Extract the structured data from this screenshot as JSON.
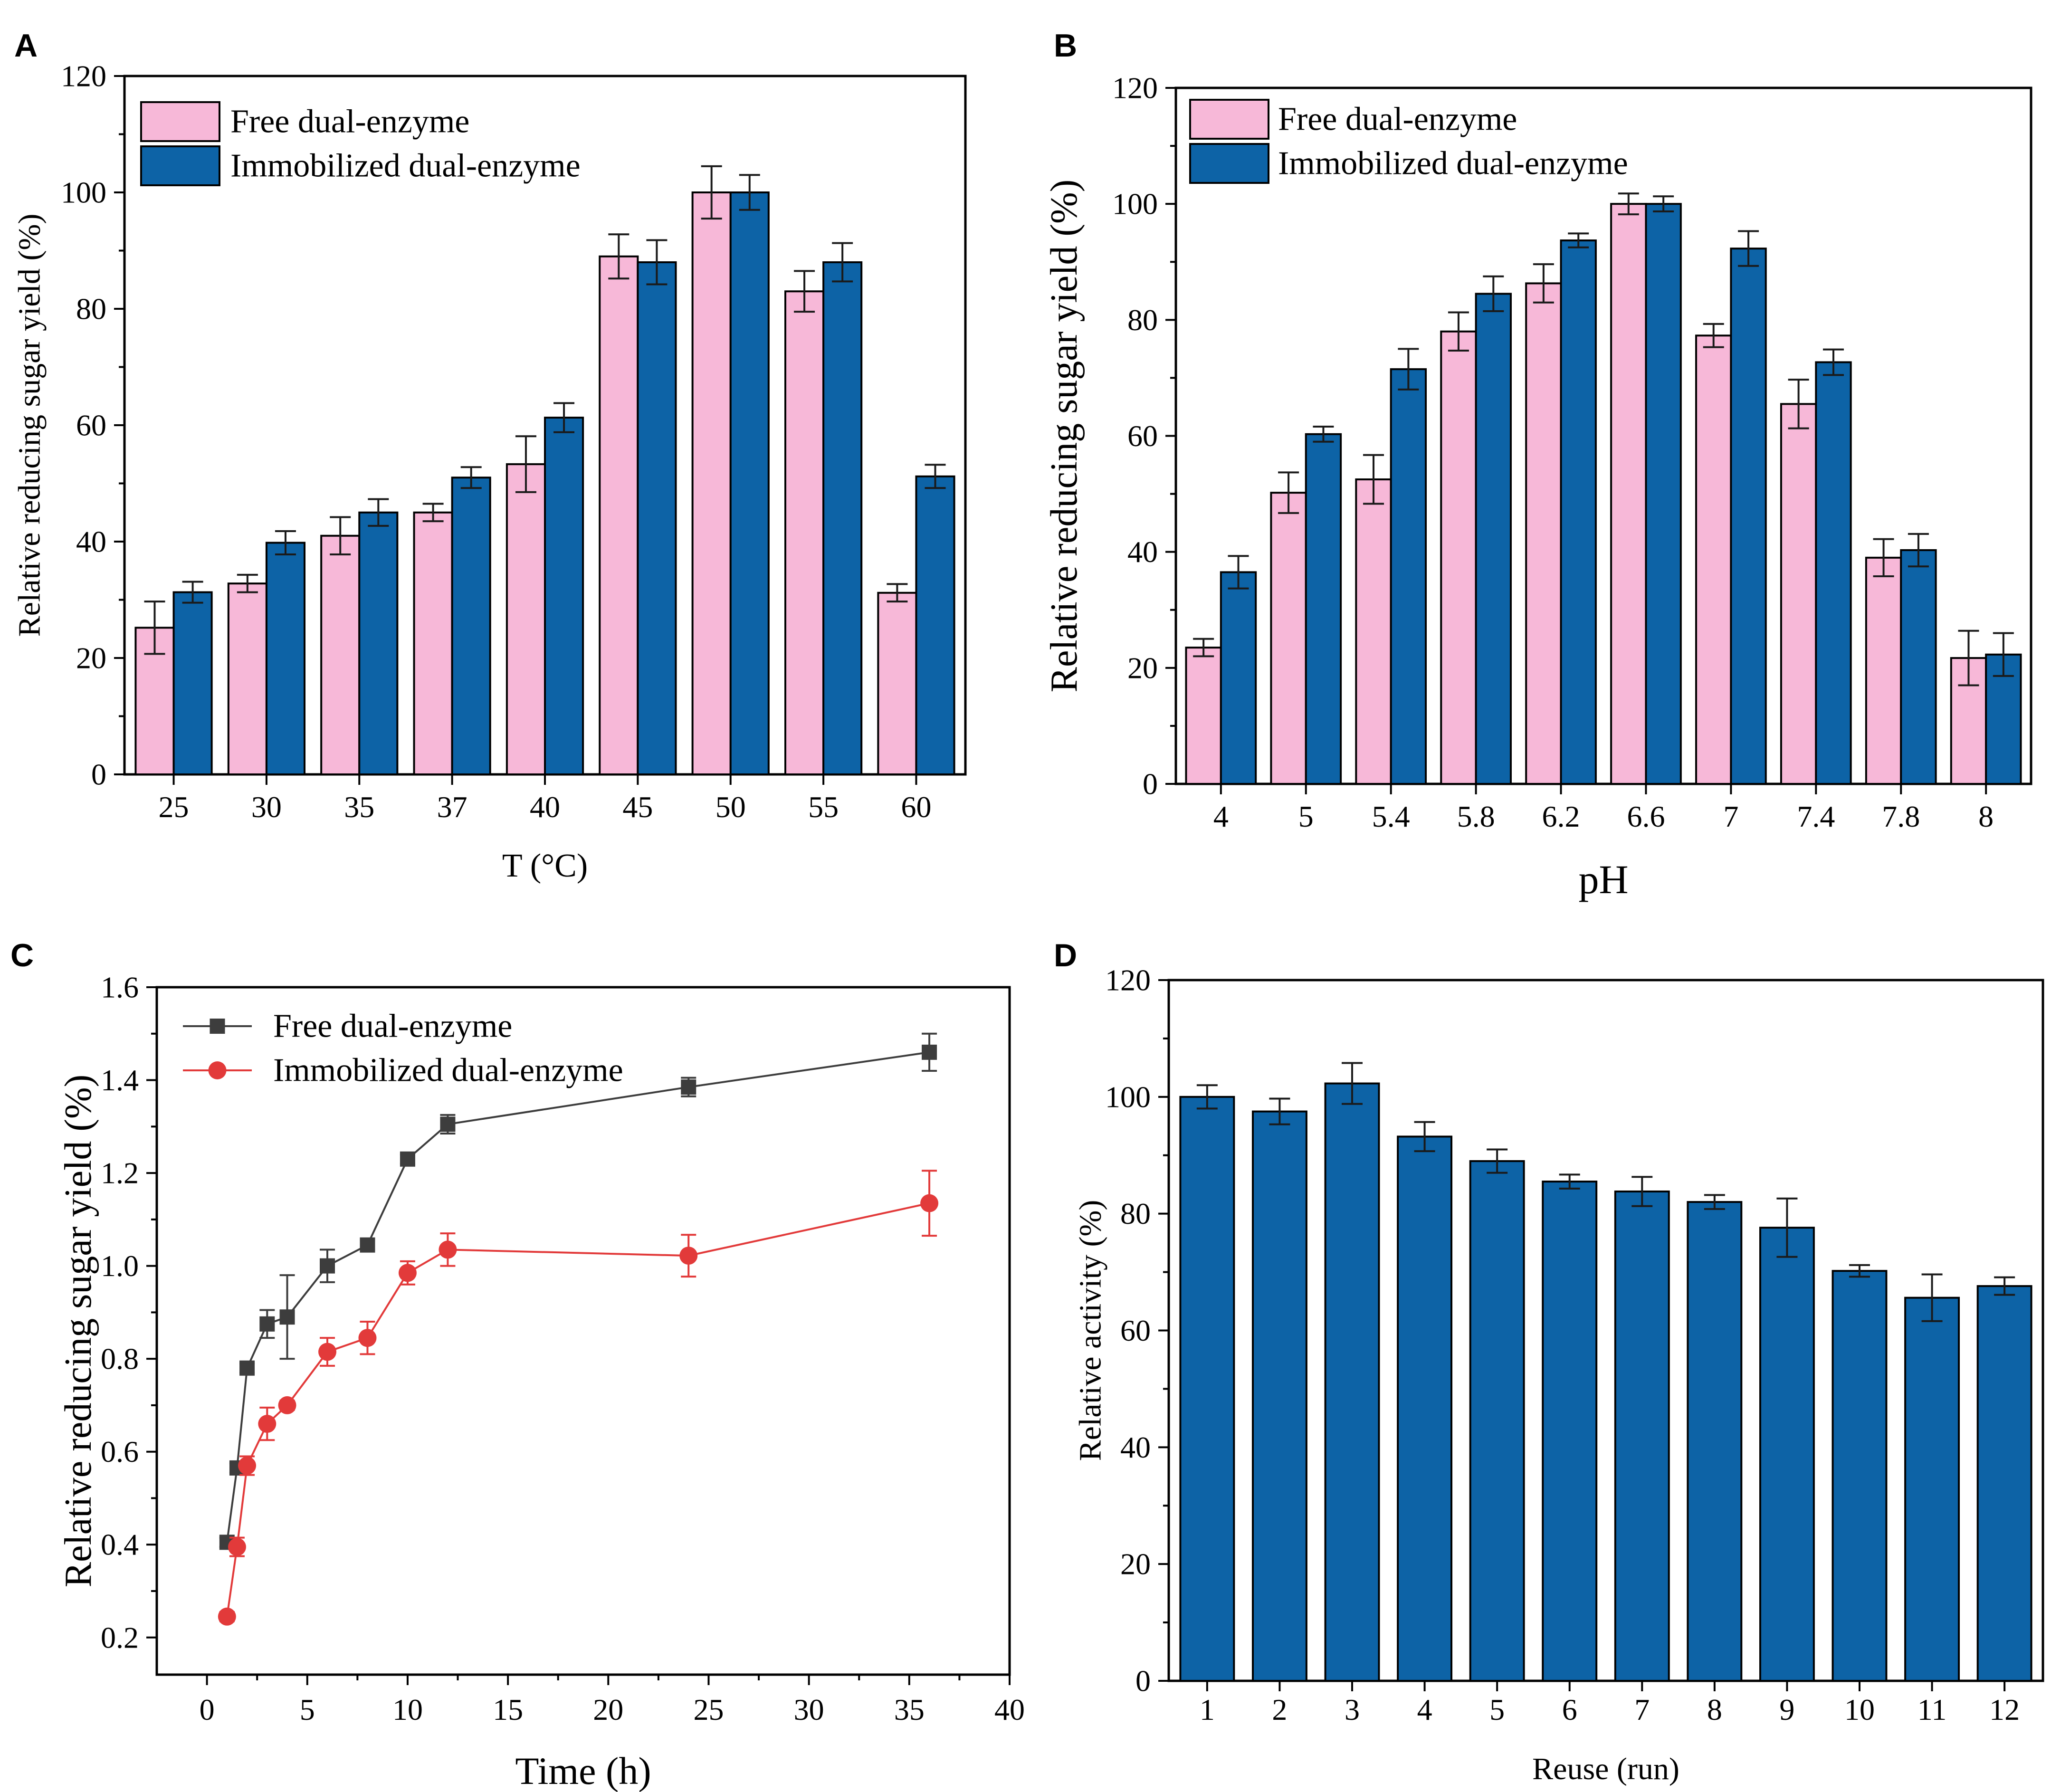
{
  "colors": {
    "free": "#f7b8d8",
    "immobilized": "#0d63a6",
    "line_free": "#3d3d3d",
    "line_immobilized": "#e23a3a",
    "axis": "#000000"
  },
  "chart_data": [
    {
      "id": "A",
      "panel_label": "A",
      "type": "bar",
      "title": "",
      "xlabel": "T (°C)",
      "ylabel": "Relative reducing sugar yield (%)",
      "ylim": [
        0,
        120
      ],
      "yticks": [
        0,
        20,
        40,
        60,
        80,
        100,
        120
      ],
      "categories": [
        "25",
        "30",
        "35",
        "37",
        "40",
        "45",
        "50",
        "55",
        "60"
      ],
      "series": [
        {
          "name": "Free dual-enzyme",
          "values": [
            25.2,
            32.8,
            41.0,
            45.0,
            53.3,
            89.0,
            100.0,
            83.0,
            31.2
          ],
          "errors": [
            4.5,
            1.5,
            3.2,
            1.5,
            4.8,
            3.8,
            4.5,
            3.5,
            1.5
          ]
        },
        {
          "name": "Immobilized dual-enzyme",
          "values": [
            31.3,
            39.8,
            45.0,
            51.0,
            61.3,
            88.0,
            100.0,
            88.0,
            51.2
          ],
          "errors": [
            1.8,
            2.0,
            2.3,
            1.8,
            2.5,
            3.8,
            3.0,
            3.3,
            2.0
          ]
        }
      ],
      "legend": "top-left"
    },
    {
      "id": "B",
      "panel_label": "B",
      "type": "bar",
      "title": "",
      "xlabel": "pH",
      "ylabel": "Relative reducing sugar yield (%)",
      "ylim": [
        0,
        120
      ],
      "yticks": [
        0,
        20,
        40,
        60,
        80,
        100,
        120
      ],
      "categories": [
        "4",
        "5",
        "5.4",
        "5.8",
        "6.2",
        "6.6",
        "7",
        "7.4",
        "7.8",
        "8"
      ],
      "series": [
        {
          "name": "Free dual-enzyme",
          "values": [
            23.5,
            50.2,
            52.5,
            78.0,
            86.3,
            100.0,
            77.3,
            65.5,
            39.0,
            21.7
          ],
          "errors": [
            1.5,
            3.5,
            4.2,
            3.3,
            3.3,
            1.8,
            2.0,
            4.2,
            3.2,
            4.7
          ]
        },
        {
          "name": "Immobilized dual-enzyme",
          "values": [
            36.5,
            60.3,
            71.5,
            84.5,
            93.7,
            100.0,
            92.3,
            72.7,
            40.3,
            22.3
          ],
          "errors": [
            2.8,
            1.3,
            3.5,
            3.0,
            1.2,
            1.3,
            3.0,
            2.2,
            2.8,
            3.7
          ]
        }
      ],
      "legend": "top-left"
    },
    {
      "id": "C",
      "panel_label": "C",
      "type": "line",
      "title": "",
      "xlabel": "Time (h)",
      "ylabel": "Relative reducing sugar yield (%)",
      "xlim": [
        -2.5,
        40
      ],
      "ylim": [
        0.12,
        1.6
      ],
      "xticks": [
        0,
        5,
        10,
        15,
        20,
        25,
        30,
        35,
        40
      ],
      "yticks": [
        0.2,
        0.4,
        0.6,
        0.8,
        1.0,
        1.2,
        1.4,
        1.6
      ],
      "ytick_labels": [
        "0.2",
        "0.4",
        "0.6",
        "0.8",
        "1.0",
        "1.2",
        "1.4",
        "1.6"
      ],
      "series": [
        {
          "name": "Free dual-enzyme",
          "marker": "square",
          "x": [
            1,
            1.5,
            2,
            3,
            4,
            6,
            8,
            10,
            12,
            24,
            36
          ],
          "y": [
            0.405,
            0.565,
            0.78,
            0.875,
            0.89,
            1.0,
            1.045,
            1.23,
            1.305,
            1.385,
            1.46
          ],
          "errors": [
            0.01,
            0.01,
            0.01,
            0.03,
            0.09,
            0.035,
            0.01,
            0.01,
            0.02,
            0.02,
            0.04
          ]
        },
        {
          "name": "Immobilized dual-enzyme",
          "marker": "circle",
          "x": [
            1,
            1.5,
            2,
            3,
            4,
            6,
            8,
            10,
            12,
            24,
            36
          ],
          "y": [
            0.245,
            0.395,
            0.57,
            0.66,
            0.7,
            0.815,
            0.845,
            0.985,
            1.035,
            1.022,
            1.135
          ],
          "errors": [
            0.01,
            0.02,
            0.02,
            0.035,
            0.01,
            0.03,
            0.035,
            0.025,
            0.035,
            0.045,
            0.07
          ]
        }
      ],
      "legend": "top-left"
    },
    {
      "id": "D",
      "panel_label": "D",
      "type": "bar",
      "title": "",
      "xlabel": "Reuse (run)",
      "ylabel": "Relative activity (%)",
      "ylim": [
        0,
        120
      ],
      "yticks": [
        0,
        20,
        40,
        60,
        80,
        100,
        120
      ],
      "categories": [
        "1",
        "2",
        "3",
        "4",
        "5",
        "6",
        "7",
        "8",
        "9",
        "10",
        "11",
        "12"
      ],
      "series": [
        {
          "name": "Relative activity",
          "values": [
            100.0,
            97.5,
            102.3,
            93.2,
            89.0,
            85.5,
            83.8,
            82.0,
            77.6,
            70.2,
            65.6,
            67.6
          ],
          "errors": [
            2.0,
            2.2,
            3.5,
            2.5,
            2.0,
            1.2,
            2.5,
            1.2,
            5.0,
            1.0,
            4.0,
            1.5
          ]
        }
      ],
      "legend": "none"
    }
  ]
}
